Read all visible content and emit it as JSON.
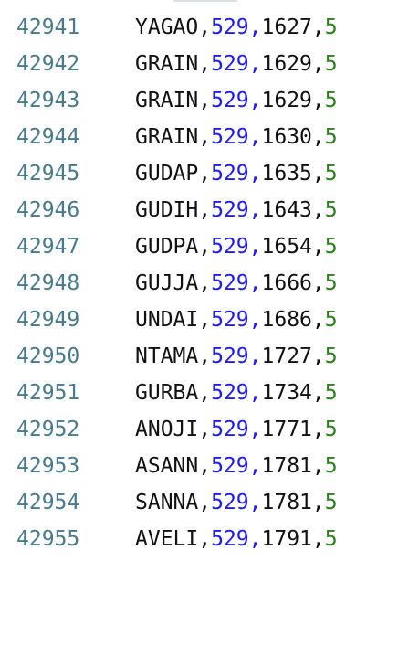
{
  "colors": {
    "line_number": "#467a8c",
    "text": "#111111",
    "number_blue": "#1c1cf0",
    "number_green": "#2e7d1f",
    "background": "#ffffff"
  },
  "lines": [
    {
      "num": "42941",
      "name": "YAGAO",
      "a": "529",
      "b": "1627",
      "c": "5"
    },
    {
      "num": "42942",
      "name": "GRAIN",
      "a": "529",
      "b": "1629",
      "c": "5"
    },
    {
      "num": "42943",
      "name": "GRAIN",
      "a": "529",
      "b": "1629",
      "c": "5"
    },
    {
      "num": "42944",
      "name": "GRAIN",
      "a": "529",
      "b": "1630",
      "c": "5"
    },
    {
      "num": "42945",
      "name": "GUDAP",
      "a": "529",
      "b": "1635",
      "c": "5"
    },
    {
      "num": "42946",
      "name": "GUDIH",
      "a": "529",
      "b": "1643",
      "c": "5"
    },
    {
      "num": "42947",
      "name": "GUDPA",
      "a": "529",
      "b": "1654",
      "c": "5"
    },
    {
      "num": "42948",
      "name": "GUJJA",
      "a": "529",
      "b": "1666",
      "c": "5"
    },
    {
      "num": "42949",
      "name": "UNDAI",
      "a": "529",
      "b": "1686",
      "c": "5"
    },
    {
      "num": "42950",
      "name": "NTAMA",
      "a": "529",
      "b": "1727",
      "c": "5"
    },
    {
      "num": "42951",
      "name": "GURBA",
      "a": "529",
      "b": "1734",
      "c": "5"
    },
    {
      "num": "42952",
      "name": "ANOJI",
      "a": "529",
      "b": "1771",
      "c": "5"
    },
    {
      "num": "42953",
      "name": "ASANN",
      "a": "529",
      "b": "1781",
      "c": "5"
    },
    {
      "num": "42954",
      "name": "SANNA",
      "a": "529",
      "b": "1781",
      "c": "5"
    },
    {
      "num": "42955",
      "name": "AVELI",
      "a": "529",
      "b": "1791",
      "c": "5"
    }
  ]
}
